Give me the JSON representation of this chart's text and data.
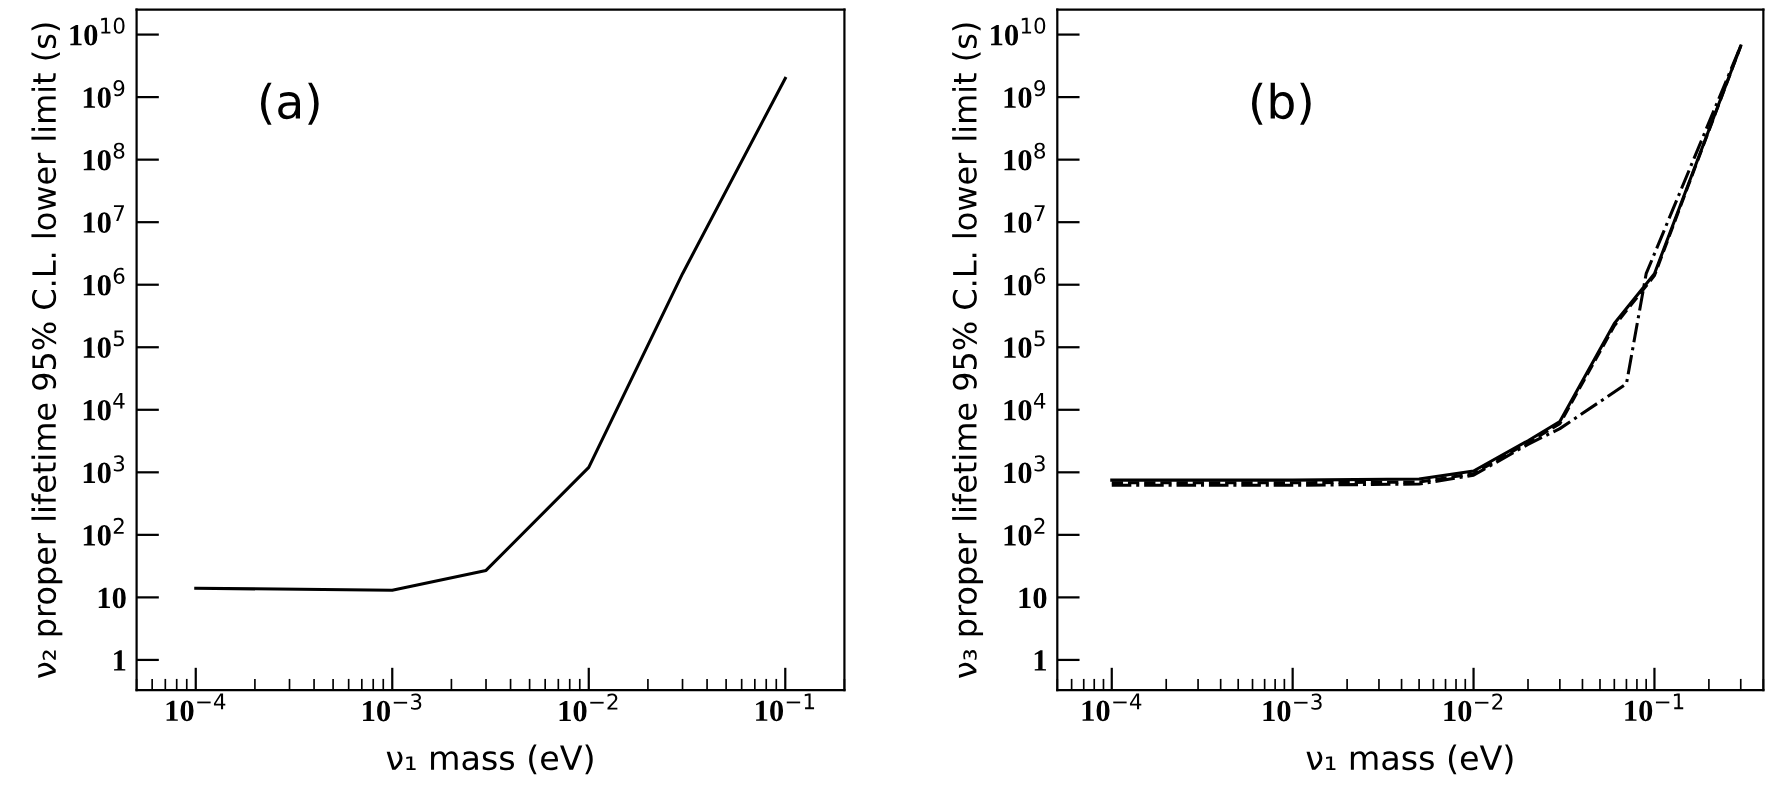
{
  "chart_data": [
    {
      "type": "line",
      "xlabel": "ν₁ mass (eV)",
      "ylabel": "ν₂ proper lifetime 95% C.L. lower limit (s)",
      "annotations": [
        "(a)"
      ],
      "log": "xy",
      "marker": "none",
      "xlim": [
        5e-05,
        0.2
      ],
      "ylim": [
        0.33,
        25000000000.0
      ],
      "xticks": [
        {
          "value": 0.0001,
          "label": "10$^{−4}$"
        },
        {
          "value": 0.001,
          "label": "10$^{−3}$"
        },
        {
          "value": 0.01,
          "label": "10$^{−2}$"
        },
        {
          "value": 0.1,
          "label": "10$^{−1}$"
        }
      ],
      "yticks": [
        1,
        10,
        {
          "value": 100,
          "label": "10$^{2}$"
        },
        {
          "value": 1000,
          "label": "10$^{3}$"
        },
        {
          "value": 10000,
          "label": "10$^{4}$"
        },
        {
          "value": 100000,
          "label": "10$^{5}$"
        },
        {
          "value": 1000000,
          "label": "10$^{6}$"
        },
        {
          "value": 10000000,
          "label": "10$^{7}$"
        },
        {
          "value": 100000000,
          "label": "10$^{8}$"
        },
        {
          "value": 1000000000,
          "label": "10$^{9}$"
        },
        {
          "value": 10000000000,
          "label": "10$^{10}$"
        }
      ],
      "series": [
        {
          "color": "#000000",
          "line_style": "solid",
          "x": [
            0.0001,
            0.001,
            0.003,
            0.01,
            0.03,
            0.1
          ],
          "values": [
            14,
            13,
            27,
            1200,
            1500000.0,
            2000000000.0
          ]
        }
      ]
    },
    {
      "type": "line",
      "xlabel": "ν₁ mass (eV)",
      "ylabel": "ν₃ proper lifetime 95% C.L. lower limit (s)",
      "annotations": [
        "(b)"
      ],
      "log": "xy",
      "marker": "none",
      "xlim": [
        5e-05,
        0.4
      ],
      "ylim": [
        0.33,
        25000000000.0
      ],
      "xticks": [
        {
          "value": 0.0001,
          "label": "10$^{−4}$"
        },
        {
          "value": 0.001,
          "label": "10$^{−3}$"
        },
        {
          "value": 0.01,
          "label": "10$^{−2}$"
        },
        {
          "value": 0.1,
          "label": "10$^{−1}$"
        }
      ],
      "yticks": [
        1,
        10,
        {
          "value": 100,
          "label": "10$^{2}$"
        },
        {
          "value": 1000,
          "label": "10$^{3}$"
        },
        {
          "value": 10000,
          "label": "10$^{4}$"
        },
        {
          "value": 100000,
          "label": "10$^{5}$"
        },
        {
          "value": 1000000,
          "label": "10$^{6}$"
        },
        {
          "value": 10000000,
          "label": "10$^{7}$"
        },
        {
          "value": 100000000,
          "label": "10$^{8}$"
        },
        {
          "value": 1000000000,
          "label": "10$^{9}$"
        },
        {
          "value": 10000000000,
          "label": "10$^{10}$"
        }
      ],
      "series": [
        {
          "color": "#000000",
          "line_style": "solid",
          "x": [
            0.0001,
            0.001,
            0.005,
            0.01,
            0.02,
            0.03,
            0.06,
            0.1,
            0.3
          ],
          "values": [
            750,
            750,
            780,
            1050,
            3200,
            6500,
            240000,
            1500000,
            6600000000
          ]
        },
        {
          "color": "#000000",
          "line_style": "dashed",
          "x": [
            0.0001,
            0.001,
            0.005,
            0.01,
            0.02,
            0.03,
            0.06,
            0.1,
            0.3
          ],
          "values": [
            680,
            680,
            700,
            950,
            3000,
            6000,
            220000,
            1400000,
            6600000000
          ]
        },
        {
          "color": "#000000",
          "line_style": "dashdot",
          "x": [
            0.0001,
            0.001,
            0.005,
            0.01,
            0.02,
            0.03,
            0.07,
            0.09,
            0.3
          ],
          "values": [
            620,
            620,
            650,
            900,
            2800,
            5000,
            26000,
            1500000,
            6600000000
          ]
        }
      ]
    }
  ]
}
